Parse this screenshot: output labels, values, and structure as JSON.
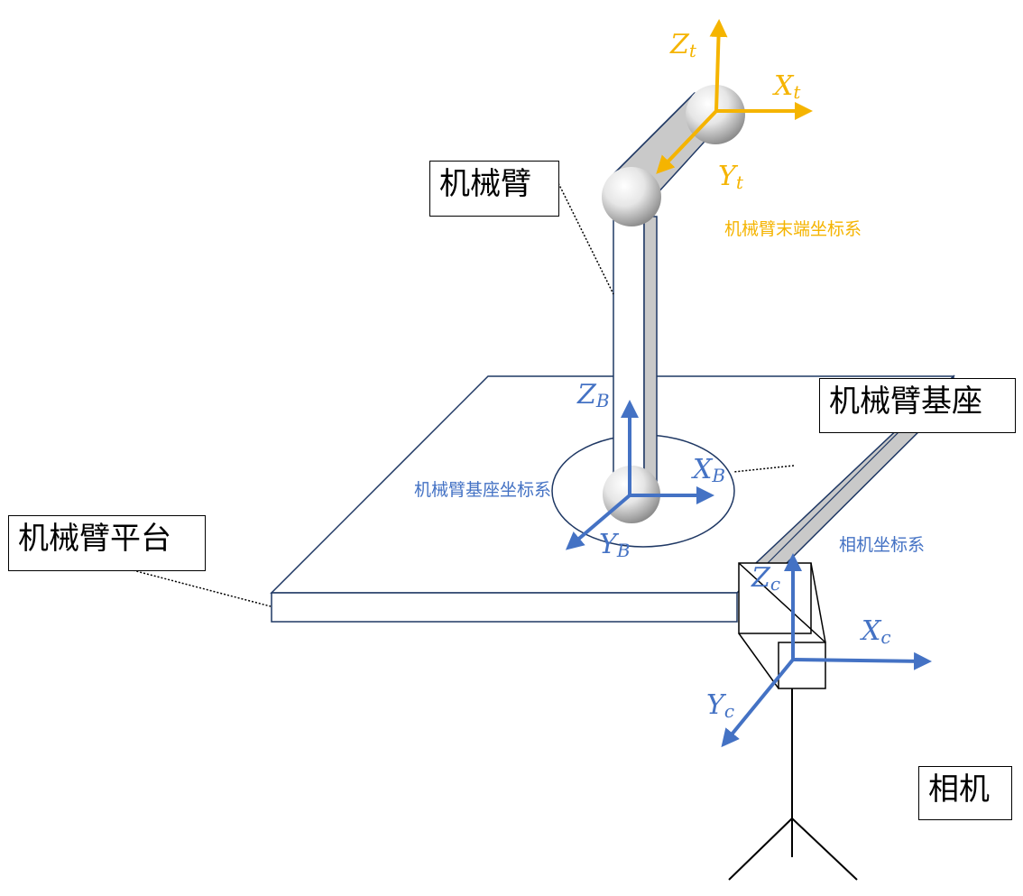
{
  "colors": {
    "tool_frame": "#F5B400",
    "frame_blue": "#4472C4",
    "outline": "#1F3864",
    "link_fill": "#C9C9C9",
    "black": "#000000"
  },
  "labels": {
    "arm": "机械臂",
    "arm_base": "机械臂基座",
    "platform": "机械臂平台",
    "camera": "相机"
  },
  "captions": {
    "tool_frame": "机械臂末端坐标系",
    "base_frame": "机械臂基座坐标系",
    "camera_frame": "相机坐标系"
  },
  "axes": {
    "tool": {
      "z": "Z",
      "z_sub": "t",
      "x": "X",
      "x_sub": "t",
      "y": "Y",
      "y_sub": "t"
    },
    "base": {
      "z": "Z",
      "z_sub": "B",
      "x": "X",
      "x_sub": "B",
      "y": "Y",
      "y_sub": "B"
    },
    "camera": {
      "z": "Z",
      "z_sub": "c",
      "x": "X",
      "x_sub": "c",
      "y": "Y",
      "y_sub": "c"
    }
  }
}
